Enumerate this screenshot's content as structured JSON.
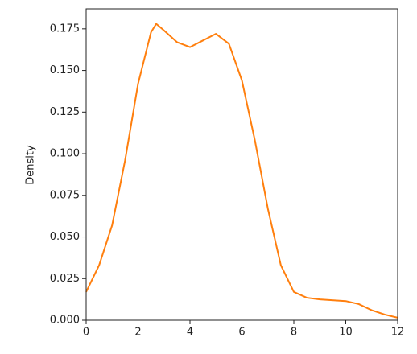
{
  "chart_data": {
    "type": "line",
    "y_label": "Density",
    "x": [
      0,
      0.5,
      1,
      1.5,
      2,
      2.5,
      2.7,
      3,
      3.5,
      4,
      4.5,
      5,
      5.5,
      6,
      6.5,
      7,
      7.5,
      8,
      8.5,
      9,
      10,
      10.5,
      11,
      11.5,
      12
    ],
    "values": [
      0.017,
      0.033,
      0.057,
      0.096,
      0.142,
      0.173,
      0.178,
      0.174,
      0.167,
      0.164,
      0.168,
      0.172,
      0.166,
      0.144,
      0.108,
      0.067,
      0.033,
      0.017,
      0.0135,
      0.0125,
      0.0115,
      0.0097,
      0.006,
      0.0034,
      0.0015
    ],
    "color": "#ff7f0e",
    "xlim": [
      0,
      12
    ],
    "xticks": [
      0,
      2,
      4,
      6,
      8,
      10,
      12
    ],
    "ylim": [
      0,
      0.187
    ],
    "yticks": [
      {
        "value": 0,
        "label": "0.000"
      },
      0.025,
      {
        "value": 0.05,
        "label": "0.050"
      },
      0.075,
      {
        "value": 0.1,
        "label": "0.100"
      },
      0.125,
      {
        "value": 0.15,
        "label": "0.150"
      },
      0.175
    ]
  }
}
